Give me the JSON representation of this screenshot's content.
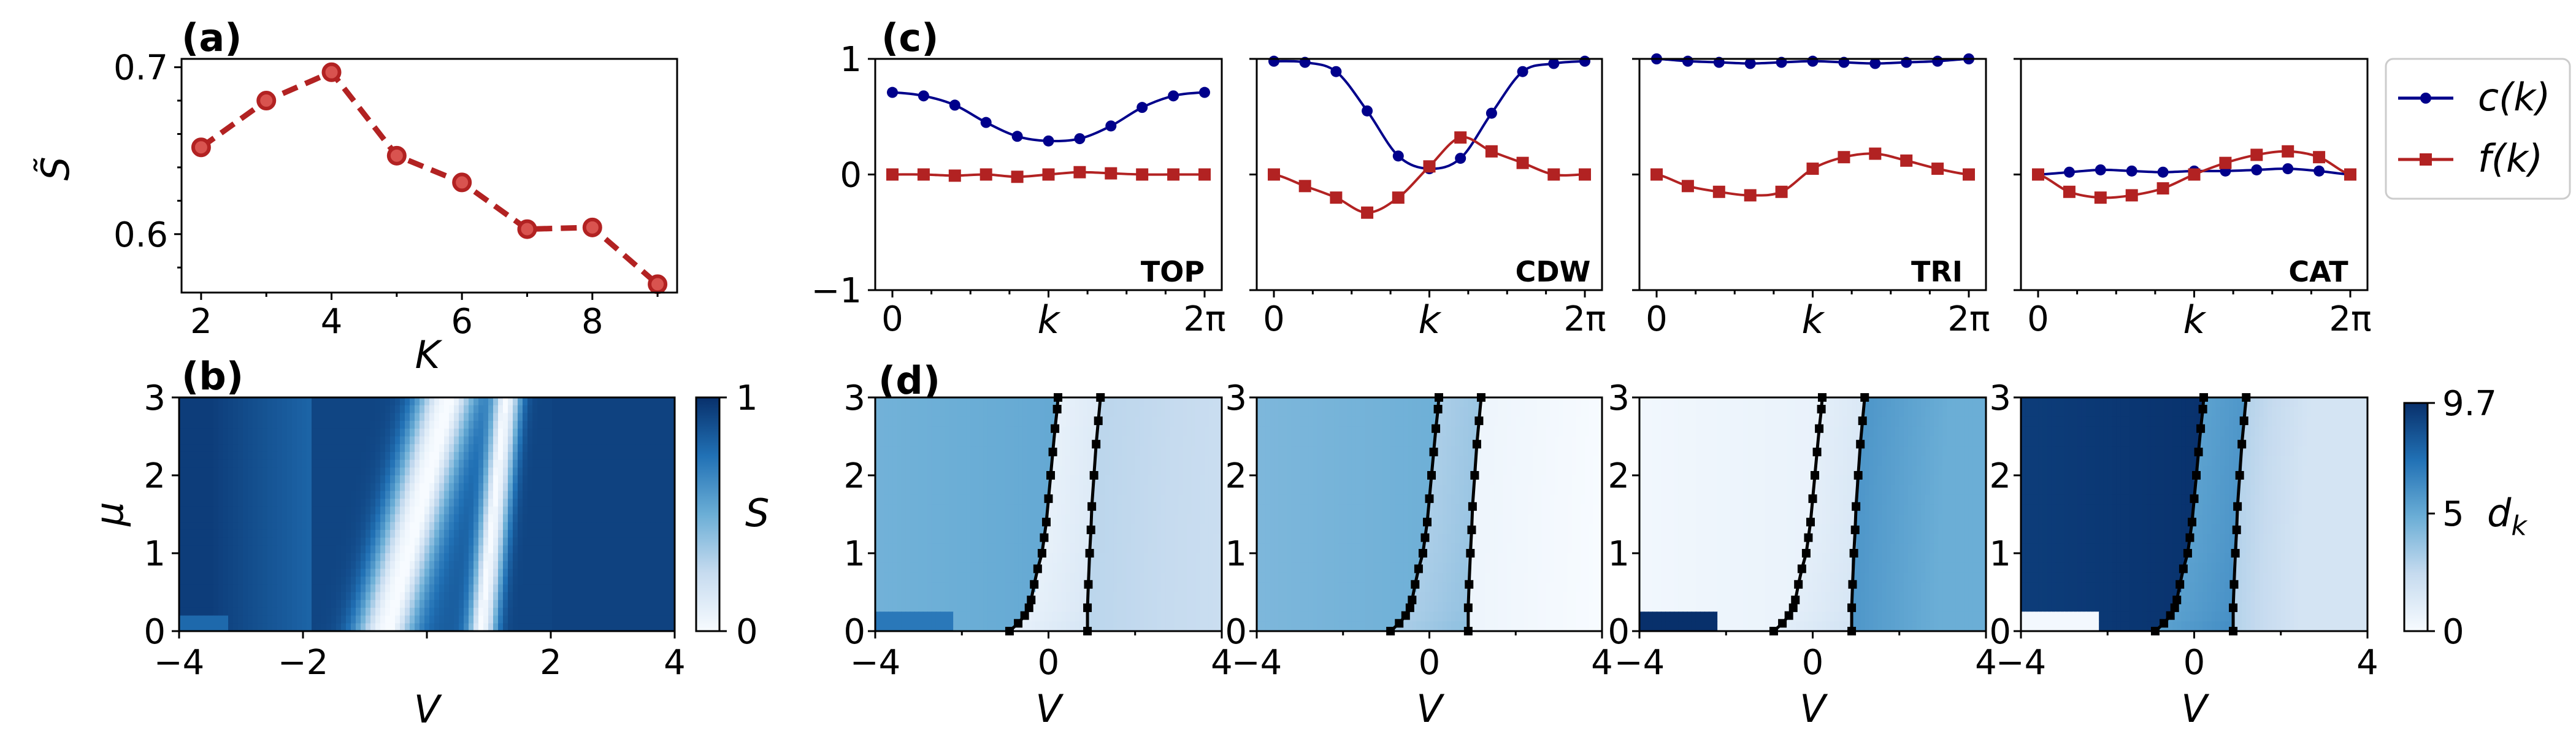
{
  "colors": {
    "red": "#b22222",
    "navy": "#00008b",
    "black": "#000000",
    "blue_dark": "#08306b",
    "blue_mid": "#4292c6",
    "blue_light": "#c6dbef",
    "white": "#f7fbff"
  },
  "panel_letters": {
    "a": "(a)",
    "b": "(b)",
    "c": "(c)",
    "d": "(d)"
  },
  "legend": {
    "c_label": "c(k)",
    "f_label": "f(k)"
  },
  "regimes": [
    "TOP",
    "CDW",
    "TRI",
    "CAT"
  ],
  "chart_data": [
    {
      "id": "a",
      "type": "line",
      "title": "",
      "xlabel": "K",
      "ylabel": "S̃",
      "x": [
        2,
        3,
        4,
        5,
        6,
        7,
        8,
        9
      ],
      "y": [
        0.652,
        0.68,
        0.697,
        0.647,
        0.631,
        0.603,
        0.604,
        0.57
      ],
      "xlim": [
        1.7,
        9.3
      ],
      "ylim": [
        0.565,
        0.705
      ],
      "xticks": [
        "2",
        "4",
        "6",
        "8"
      ],
      "xtick_values": [
        2,
        4,
        6,
        8
      ],
      "yticks": [
        "0.6",
        "0.7"
      ],
      "ytick_values": [
        0.6,
        0.7
      ],
      "style": "dashed line with circle markers",
      "color": "#b22222"
    },
    {
      "id": "b",
      "type": "heatmap",
      "xlabel": "V",
      "ylabel": "μ",
      "xlim": [
        -4,
        4
      ],
      "ylim": [
        0,
        3
      ],
      "xticks": [
        "−4",
        "−2",
        "2",
        "4"
      ],
      "xtick_values": [
        -4,
        -2,
        2,
        4
      ],
      "yticks": [
        "0",
        "1",
        "2",
        "3"
      ],
      "ytick_values": [
        0,
        1,
        2,
        3
      ],
      "colorbar": {
        "label": "S",
        "range": [
          0,
          1
        ],
        "ticks": [
          "0",
          "1"
        ]
      },
      "valleys": [
        {
          "at_mu0": -0.7,
          "at_mu3": 0.3,
          "min": 0.02
        },
        {
          "at_mu0": 0.9,
          "at_mu3": 1.3,
          "min": 0.05
        }
      ]
    },
    {
      "id": "c",
      "type": "line",
      "xlabel": "k",
      "ylim": [
        -1,
        1
      ],
      "yticks": [
        "−1",
        "0",
        "1"
      ],
      "ytick_values": [
        -1,
        0,
        1
      ],
      "xticks": [
        "0",
        "2π"
      ],
      "series_names": [
        "c(k)",
        "f(k)"
      ],
      "panels": [
        {
          "name": "TOP",
          "c": [
            0.71,
            0.68,
            0.6,
            0.45,
            0.33,
            0.29,
            0.31,
            0.42,
            0.58,
            0.68,
            0.71
          ],
          "f": [
            0.0,
            0.0,
            -0.01,
            0.0,
            -0.02,
            0.0,
            0.02,
            0.01,
            0.0,
            0.0,
            0.0
          ]
        },
        {
          "name": "CDW",
          "c": [
            0.98,
            0.97,
            0.89,
            0.55,
            0.16,
            0.05,
            0.14,
            0.53,
            0.89,
            0.96,
            0.98
          ],
          "f": [
            0.0,
            -0.1,
            -0.2,
            -0.33,
            -0.2,
            0.07,
            0.32,
            0.2,
            0.1,
            0.0,
            0.0
          ]
        },
        {
          "name": "TRI",
          "c": [
            1.0,
            0.98,
            0.97,
            0.96,
            0.97,
            0.98,
            0.97,
            0.96,
            0.97,
            0.98,
            1.0
          ],
          "f": [
            0.0,
            -0.1,
            -0.15,
            -0.18,
            -0.15,
            0.05,
            0.15,
            0.18,
            0.12,
            0.05,
            0.0
          ]
        },
        {
          "name": "CAT",
          "c": [
            0.0,
            0.02,
            0.04,
            0.03,
            0.02,
            0.03,
            0.03,
            0.04,
            0.05,
            0.03,
            0.0
          ],
          "f": [
            0.0,
            -0.15,
            -0.2,
            -0.18,
            -0.12,
            0.0,
            0.1,
            0.17,
            0.2,
            0.15,
            0.0
          ]
        }
      ]
    },
    {
      "id": "d",
      "type": "heatmap",
      "xlabel": "V",
      "xlim": [
        -4,
        4
      ],
      "ylim": [
        0,
        3
      ],
      "xticks": [
        "−4",
        "0",
        "4"
      ],
      "xtick_values": [
        -4,
        0,
        4
      ],
      "yticks": [
        "0",
        "1",
        "2",
        "3"
      ],
      "ytick_values": [
        0,
        1,
        2,
        3
      ],
      "colorbar": {
        "label": "d",
        "label_sub": "k",
        "range": [
          0,
          9.7
        ],
        "ticks": [
          "0",
          "5",
          "9.7"
        ],
        "tick_values": [
          0,
          5,
          9.7
        ]
      },
      "boundaries": [
        {
          "points": [
            [
              -0.9,
              0.0
            ],
            [
              -0.7,
              0.1
            ],
            [
              -0.55,
              0.2
            ],
            [
              -0.45,
              0.3
            ],
            [
              -0.4,
              0.4
            ],
            [
              -0.33,
              0.6
            ],
            [
              -0.25,
              0.8
            ],
            [
              -0.15,
              1.0
            ],
            [
              -0.1,
              1.2
            ],
            [
              -0.05,
              1.4
            ],
            [
              0.0,
              1.7
            ],
            [
              0.05,
              2.0
            ],
            [
              0.1,
              2.3
            ],
            [
              0.15,
              2.6
            ],
            [
              0.2,
              2.85
            ],
            [
              0.22,
              3.0
            ]
          ]
        },
        {
          "points": [
            [
              0.9,
              0.0
            ],
            [
              0.9,
              0.3
            ],
            [
              0.92,
              0.6
            ],
            [
              0.95,
              1.0
            ],
            [
              0.98,
              1.3
            ],
            [
              1.0,
              1.6
            ],
            [
              1.05,
              2.0
            ],
            [
              1.1,
              2.4
            ],
            [
              1.15,
              2.7
            ],
            [
              1.2,
              3.0
            ]
          ]
        }
      ],
      "panels": [
        {
          "name": "TOP",
          "regions": [
            0.48,
            0.08,
            0.28
          ],
          "corner_patch": 0.72
        },
        {
          "name": "CDW",
          "regions": [
            0.45,
            0.32,
            0.05
          ],
          "corner_patch": 0.0
        },
        {
          "name": "TRI",
          "regions": [
            0.03,
            0.1,
            0.5
          ],
          "corner_patch": 1.0
        },
        {
          "name": "CAT",
          "regions": [
            0.95,
            0.55,
            0.18
          ],
          "corner_patch": -0.1
        }
      ]
    }
  ]
}
